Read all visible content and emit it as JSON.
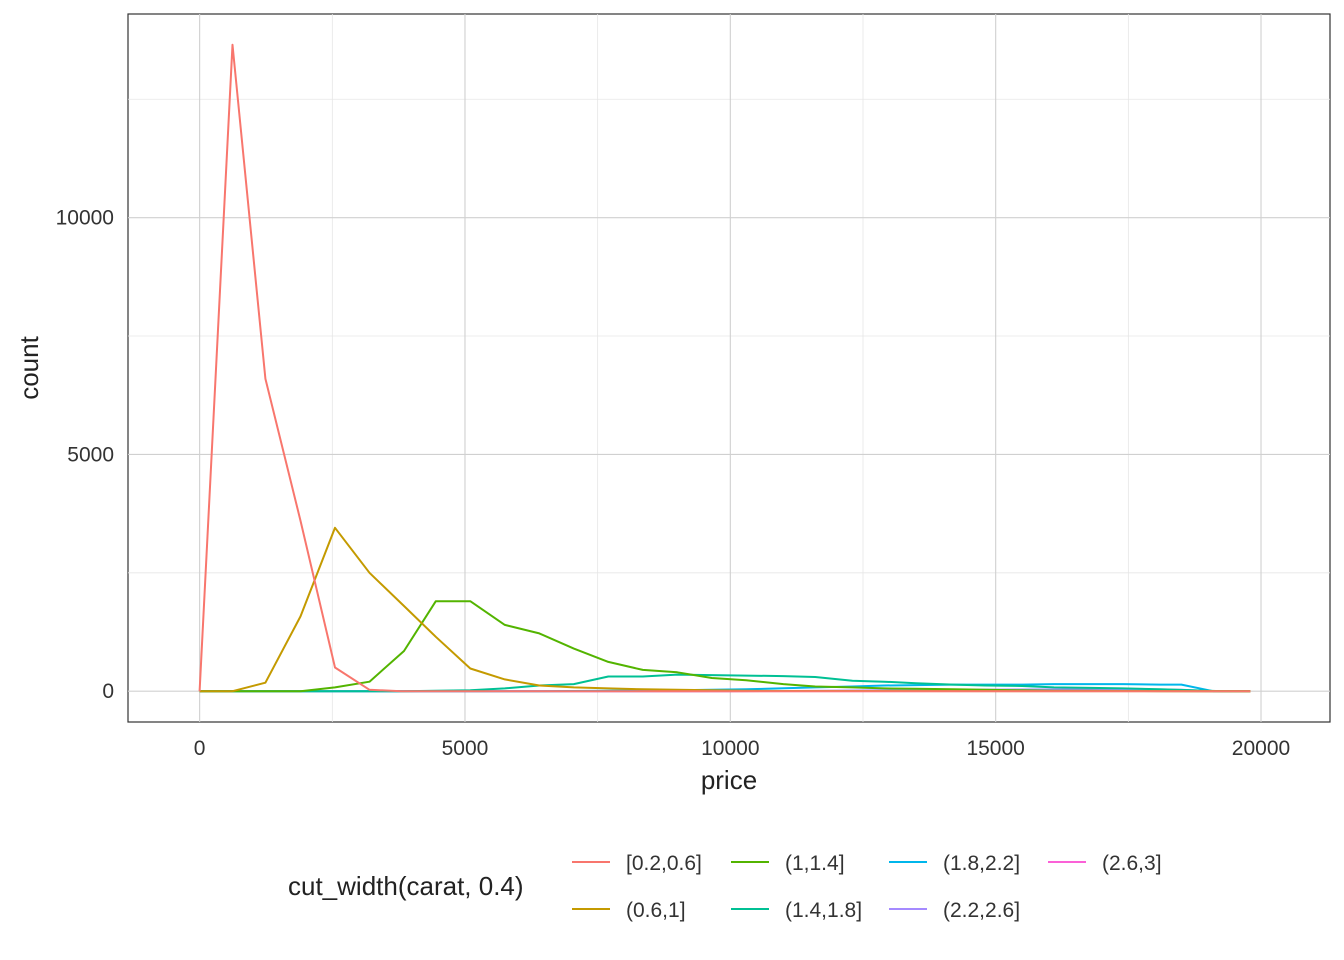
{
  "chart_data": {
    "type": "line",
    "title": "",
    "xlabel": "price",
    "ylabel": "count",
    "xlim": [
      -1350,
      21300
    ],
    "ylim": [
      -650,
      14300
    ],
    "x_ticks": [
      0,
      5000,
      10000,
      15000,
      20000
    ],
    "x_tick_labels": [
      "0",
      "5000",
      "10000",
      "15000",
      "20000"
    ],
    "y_ticks": [
      0,
      5000,
      10000
    ],
    "y_tick_labels": [
      "0",
      "5000",
      "10000"
    ],
    "grid": true,
    "legend": {
      "title": "cut_width(carat, 0.4)",
      "position": "bottom"
    },
    "series": [
      {
        "name": "[0.2,0.6]",
        "color": "#F8766D",
        "points": [
          [
            0,
            0
          ],
          [
            620,
            13650
          ],
          [
            1240,
            6600
          ],
          [
            1900,
            3600
          ],
          [
            2550,
            500
          ],
          [
            3200,
            30
          ],
          [
            3800,
            0
          ],
          [
            19800,
            0
          ]
        ]
      },
      {
        "name": "(0.6,1]",
        "color": "#C49A00",
        "points": [
          [
            0,
            0
          ],
          [
            620,
            0
          ],
          [
            1240,
            180
          ],
          [
            1900,
            1580
          ],
          [
            2550,
            3450
          ],
          [
            3200,
            2500
          ],
          [
            3850,
            1800
          ],
          [
            4450,
            1150
          ],
          [
            5100,
            480
          ],
          [
            5750,
            250
          ],
          [
            6400,
            120
          ],
          [
            7050,
            80
          ],
          [
            7700,
            60
          ],
          [
            8350,
            40
          ],
          [
            9000,
            30
          ],
          [
            9650,
            20
          ],
          [
            10300,
            10
          ],
          [
            11000,
            5
          ],
          [
            19800,
            0
          ]
        ]
      },
      {
        "name": "(1,1.4]",
        "color": "#53B400",
        "points": [
          [
            0,
            0
          ],
          [
            1900,
            0
          ],
          [
            2550,
            80
          ],
          [
            3200,
            200
          ],
          [
            3850,
            850
          ],
          [
            4450,
            1900
          ],
          [
            5100,
            1900
          ],
          [
            5750,
            1400
          ],
          [
            6400,
            1220
          ],
          [
            7050,
            900
          ],
          [
            7700,
            620
          ],
          [
            8350,
            450
          ],
          [
            9000,
            400
          ],
          [
            9650,
            280
          ],
          [
            10300,
            230
          ],
          [
            11000,
            150
          ],
          [
            11600,
            100
          ],
          [
            12300,
            80
          ],
          [
            12900,
            60
          ],
          [
            13500,
            50
          ],
          [
            14200,
            40
          ],
          [
            14800,
            30
          ],
          [
            15500,
            20
          ],
          [
            16100,
            10
          ],
          [
            16800,
            8
          ],
          [
            17400,
            5
          ],
          [
            18100,
            3
          ],
          [
            19800,
            0
          ]
        ]
      },
      {
        "name": "(1.4,1.8]",
        "color": "#00C094",
        "points": [
          [
            0,
            0
          ],
          [
            3850,
            0
          ],
          [
            4450,
            10
          ],
          [
            5100,
            20
          ],
          [
            5750,
            60
          ],
          [
            6400,
            120
          ],
          [
            7050,
            150
          ],
          [
            7700,
            310
          ],
          [
            8350,
            310
          ],
          [
            9000,
            350
          ],
          [
            9650,
            340
          ],
          [
            10300,
            330
          ],
          [
            11000,
            320
          ],
          [
            11600,
            300
          ],
          [
            12300,
            220
          ],
          [
            12900,
            200
          ],
          [
            13500,
            170
          ],
          [
            14200,
            140
          ],
          [
            14800,
            120
          ],
          [
            15500,
            110
          ],
          [
            16100,
            80
          ],
          [
            16800,
            70
          ],
          [
            17400,
            60
          ],
          [
            18100,
            40
          ],
          [
            18700,
            20
          ],
          [
            19300,
            0
          ],
          [
            19800,
            0
          ]
        ]
      },
      {
        "name": "(1.8,2.2]",
        "color": "#00B6EB",
        "points": [
          [
            0,
            0
          ],
          [
            6400,
            0
          ],
          [
            7700,
            10
          ],
          [
            9000,
            20
          ],
          [
            10300,
            40
          ],
          [
            11600,
            80
          ],
          [
            12300,
            100
          ],
          [
            12900,
            120
          ],
          [
            13500,
            130
          ],
          [
            14200,
            140
          ],
          [
            14800,
            140
          ],
          [
            15500,
            140
          ],
          [
            16100,
            150
          ],
          [
            16800,
            150
          ],
          [
            17400,
            150
          ],
          [
            18100,
            140
          ],
          [
            18500,
            140
          ],
          [
            19100,
            0
          ],
          [
            19800,
            0
          ]
        ]
      },
      {
        "name": "(2.2,2.6]",
        "color": "#A58AFF",
        "points": [
          [
            0,
            0
          ],
          [
            9000,
            0
          ],
          [
            11000,
            5
          ],
          [
            13000,
            20
          ],
          [
            15000,
            35
          ],
          [
            17000,
            40
          ],
          [
            18500,
            30
          ],
          [
            19100,
            0
          ],
          [
            19800,
            0
          ]
        ]
      },
      {
        "name": "(2.6,3]",
        "color": "#FB61D7",
        "points": [
          [
            0,
            0
          ],
          [
            10000,
            0
          ],
          [
            13000,
            3
          ],
          [
            15000,
            5
          ],
          [
            17000,
            8
          ],
          [
            18500,
            5
          ],
          [
            19100,
            0
          ],
          [
            19800,
            0
          ]
        ]
      }
    ]
  }
}
